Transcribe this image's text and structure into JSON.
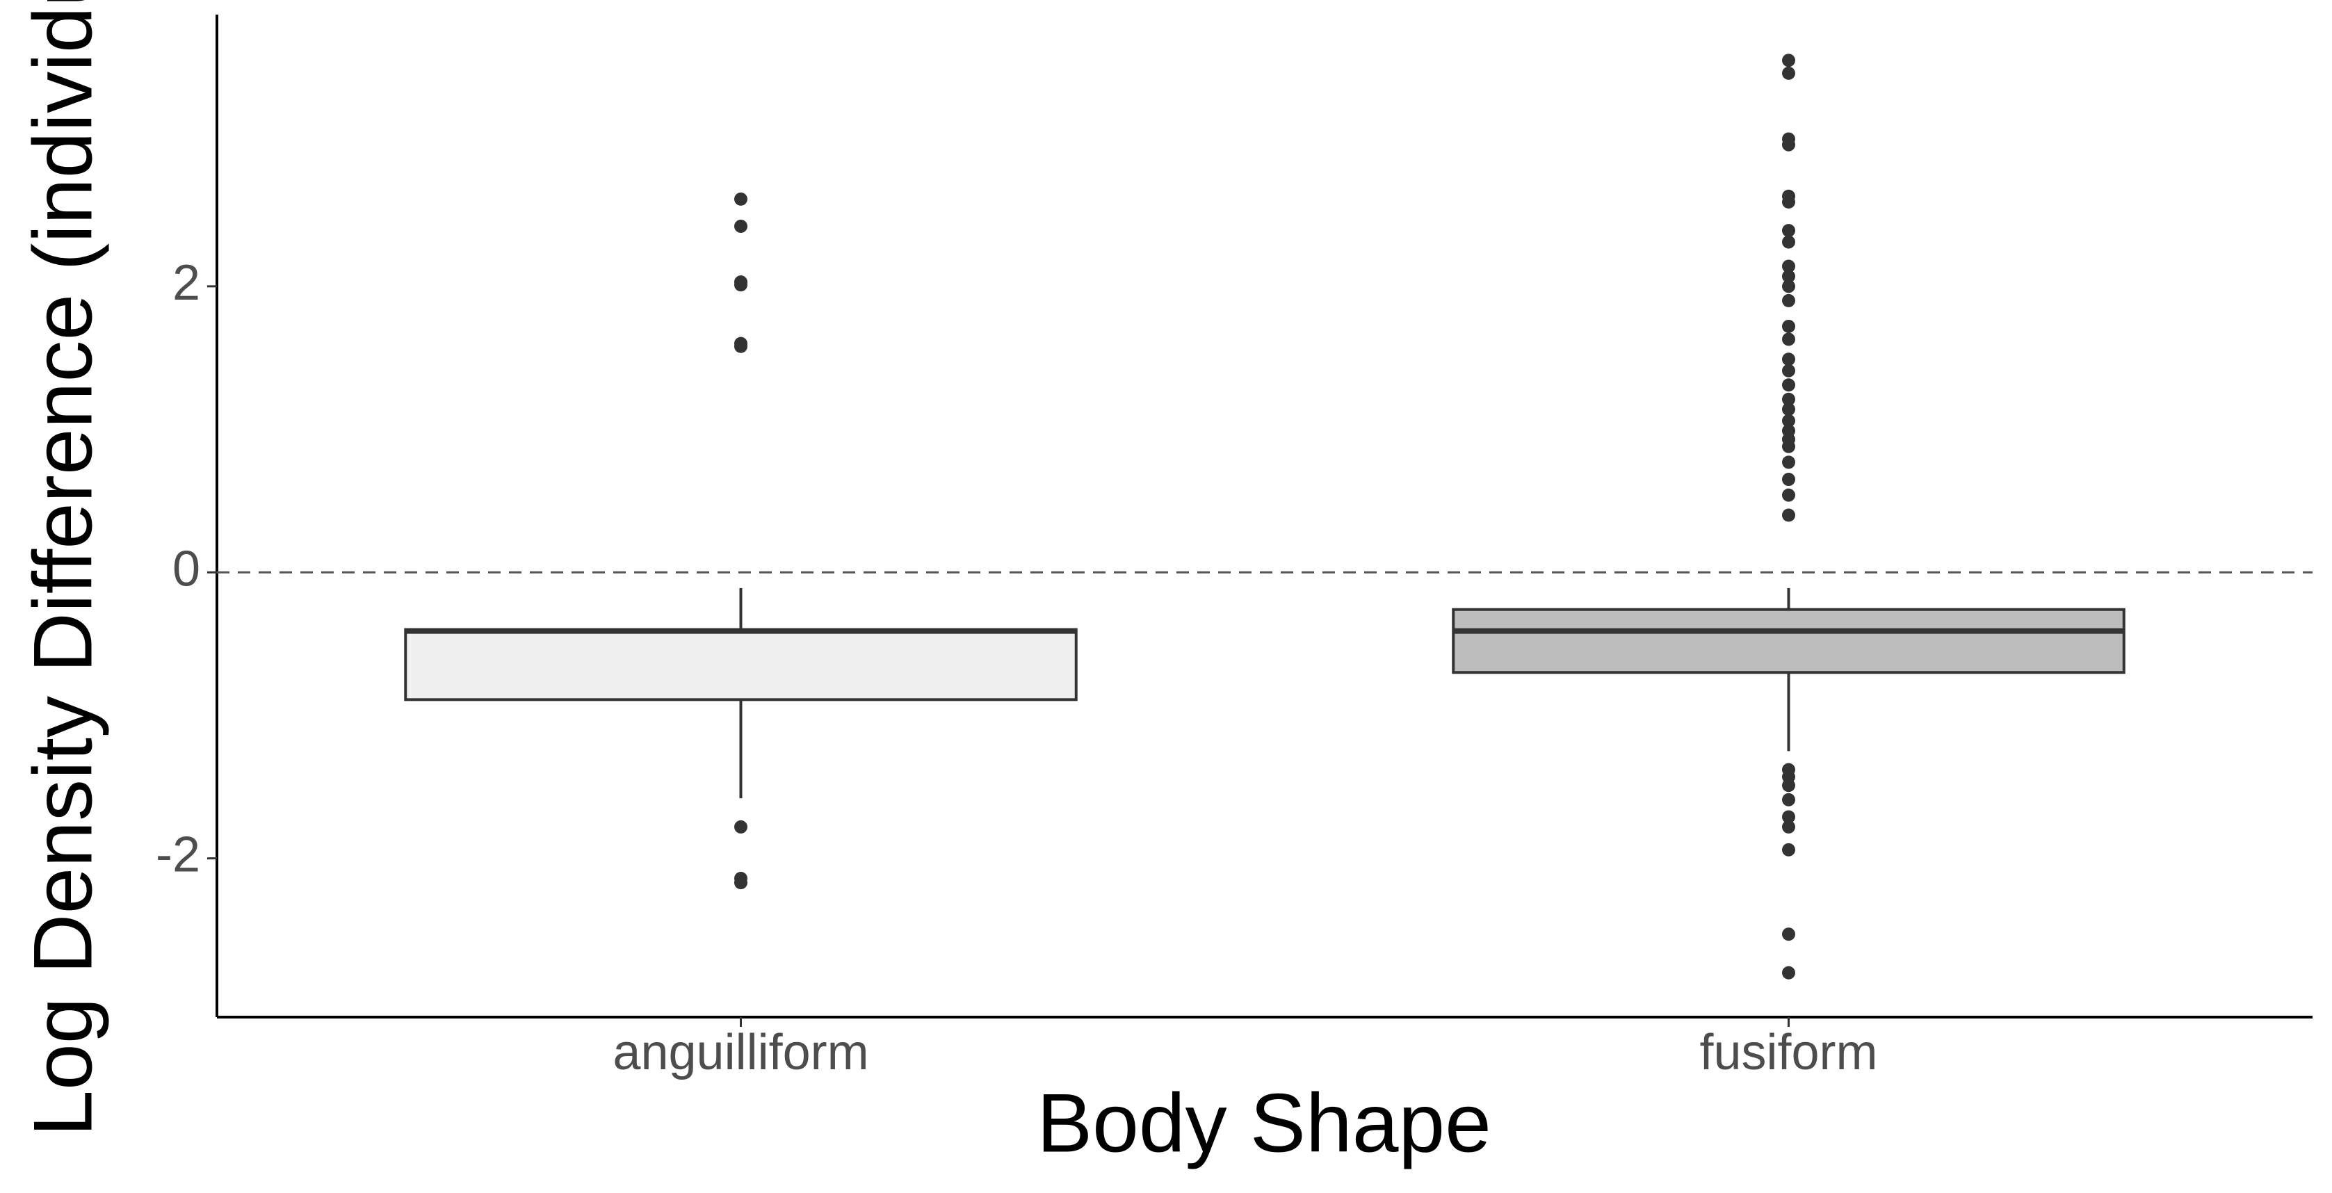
{
  "chart_data": {
    "type": "box",
    "x_label": "Body Shape",
    "y_label": "Log Density Difference (individual",
    "categories": [
      "anguilliform",
      "fusiform"
    ],
    "boxes": [
      {
        "color": "#f0f0f0",
        "lower_whisker": -1.58,
        "q1": -0.89,
        "median": -0.41,
        "q3": -0.4,
        "upper_whisker": -0.11,
        "outliers": [
          2.61,
          2.42,
          2.03,
          2.01,
          1.6,
          1.58,
          -1.78,
          -2.14,
          -2.17
        ]
      },
      {
        "color": "#bdbdbd",
        "lower_whisker": -1.25,
        "q1": -0.7,
        "median": -0.41,
        "q3": -0.26,
        "upper_whisker": -0.11,
        "outliers": [
          3.58,
          3.49,
          3.03,
          2.99,
          2.63,
          2.59,
          2.39,
          2.31,
          2.14,
          2.07,
          2.0,
          1.9,
          1.72,
          1.63,
          1.49,
          1.41,
          1.31,
          1.21,
          1.14,
          1.06,
          0.99,
          0.93,
          0.88,
          0.77,
          0.65,
          0.54,
          0.4,
          -1.38,
          -1.43,
          -1.49,
          -1.59,
          -1.71,
          -1.78,
          -1.94,
          -2.53,
          -2.8
        ]
      }
    ],
    "reference_line": {
      "y": 0,
      "style": "dashed"
    },
    "ylim": [
      -3.11,
      3.9
    ],
    "yticks": [
      -2,
      0,
      2
    ],
    "grid": false
  }
}
